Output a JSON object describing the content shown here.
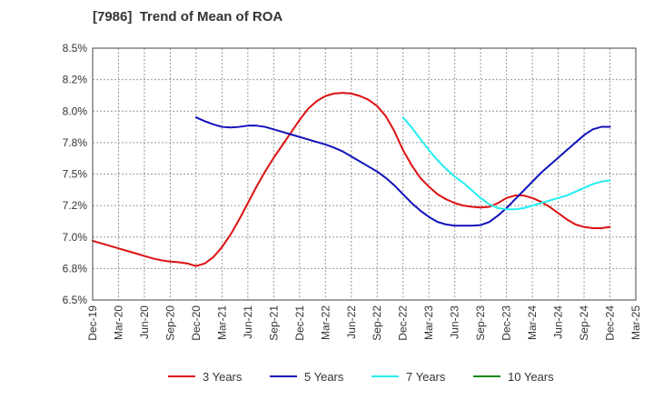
{
  "chart_data": {
    "type": "line",
    "title": "[7986]  Trend of Mean of ROA",
    "y_unit": "%",
    "ylim": [
      6.5,
      8.5
    ],
    "y_ticks": [
      "6.5%",
      "6.8%",
      "7.0%",
      "7.2%",
      "7.5%",
      "7.8%",
      "8.0%",
      "8.2%",
      "8.5%"
    ],
    "x_ticks": [
      "Dec-19",
      "Mar-20",
      "Jun-20",
      "Sep-20",
      "Dec-20",
      "Mar-21",
      "Jun-21",
      "Sep-21",
      "Dec-21",
      "Mar-22",
      "Jun-22",
      "Sep-22",
      "Dec-22",
      "Mar-23",
      "Jun-23",
      "Sep-23",
      "Dec-23",
      "Mar-24",
      "Jun-24",
      "Sep-24",
      "Dec-24",
      "Mar-25"
    ],
    "grid": true,
    "legend_position": "bottom",
    "series": [
      {
        "name": "3 Years",
        "color": "#dd1111",
        "points": [
          [
            "Dec-19",
            6.97
          ],
          [
            "Jan-20",
            6.95
          ],
          [
            "Feb-20",
            6.93
          ],
          [
            "Mar-20",
            6.91
          ],
          [
            "Apr-20",
            6.89
          ],
          [
            "May-20",
            6.87
          ],
          [
            "Jun-20",
            6.85
          ],
          [
            "Jul-20",
            6.83
          ],
          [
            "Aug-20",
            6.815
          ],
          [
            "Sep-20",
            6.805
          ],
          [
            "Oct-20",
            6.8
          ],
          [
            "Nov-20",
            6.79
          ],
          [
            "Dec-20",
            6.77
          ],
          [
            "Jan-21",
            6.79
          ],
          [
            "Feb-21",
            6.84
          ],
          [
            "Mar-21",
            6.92
          ],
          [
            "Apr-21",
            7.02
          ],
          [
            "May-21",
            7.14
          ],
          [
            "Jun-21",
            7.27
          ],
          [
            "Jul-21",
            7.4
          ],
          [
            "Aug-21",
            7.52
          ],
          [
            "Sep-21",
            7.63
          ],
          [
            "Oct-21",
            7.73
          ],
          [
            "Nov-21",
            7.83
          ],
          [
            "Dec-21",
            7.93
          ],
          [
            "Jan-22",
            8.02
          ],
          [
            "Feb-22",
            8.08
          ],
          [
            "Mar-22",
            8.12
          ],
          [
            "Apr-22",
            8.14
          ],
          [
            "May-22",
            8.145
          ],
          [
            "Jun-22",
            8.14
          ],
          [
            "Jul-22",
            8.12
          ],
          [
            "Aug-22",
            8.09
          ],
          [
            "Sep-22",
            8.04
          ],
          [
            "Oct-22",
            7.96
          ],
          [
            "Nov-22",
            7.84
          ],
          [
            "Dec-22",
            7.69
          ],
          [
            "Jan-23",
            7.57
          ],
          [
            "Feb-23",
            7.47
          ],
          [
            "Mar-23",
            7.4
          ],
          [
            "Apr-23",
            7.34
          ],
          [
            "May-23",
            7.3
          ],
          [
            "Jun-23",
            7.27
          ],
          [
            "Jul-23",
            7.25
          ],
          [
            "Aug-23",
            7.24
          ],
          [
            "Sep-23",
            7.235
          ],
          [
            "Oct-23",
            7.24
          ],
          [
            "Nov-23",
            7.27
          ],
          [
            "Dec-23",
            7.31
          ],
          [
            "Jan-24",
            7.33
          ],
          [
            "Feb-24",
            7.33
          ],
          [
            "Mar-24",
            7.31
          ],
          [
            "Apr-24",
            7.28
          ],
          [
            "May-24",
            7.24
          ],
          [
            "Jun-24",
            7.19
          ],
          [
            "Jul-24",
            7.14
          ],
          [
            "Aug-24",
            7.1
          ],
          [
            "Sep-24",
            7.08
          ],
          [
            "Oct-24",
            7.07
          ],
          [
            "Nov-24",
            7.07
          ],
          [
            "Dec-24",
            7.08
          ]
        ]
      },
      {
        "name": "5 Years",
        "color": "#1111bb",
        "points": [
          [
            "Dec-20",
            7.95
          ],
          [
            "Jan-21",
            7.92
          ],
          [
            "Feb-21",
            7.895
          ],
          [
            "Mar-21",
            7.875
          ],
          [
            "Apr-21",
            7.87
          ],
          [
            "May-21",
            7.875
          ],
          [
            "Jun-21",
            7.885
          ],
          [
            "Jul-21",
            7.885
          ],
          [
            "Aug-21",
            7.875
          ],
          [
            "Sep-21",
            7.855
          ],
          [
            "Oct-21",
            7.835
          ],
          [
            "Nov-21",
            7.815
          ],
          [
            "Dec-21",
            7.795
          ],
          [
            "Jan-22",
            7.775
          ],
          [
            "Feb-22",
            7.755
          ],
          [
            "Mar-22",
            7.735
          ],
          [
            "Apr-22",
            7.71
          ],
          [
            "May-22",
            7.68
          ],
          [
            "Jun-22",
            7.64
          ],
          [
            "Jul-22",
            7.6
          ],
          [
            "Aug-22",
            7.56
          ],
          [
            "Sep-22",
            7.52
          ],
          [
            "Oct-22",
            7.47
          ],
          [
            "Nov-22",
            7.41
          ],
          [
            "Dec-22",
            7.34
          ],
          [
            "Jan-23",
            7.27
          ],
          [
            "Feb-23",
            7.21
          ],
          [
            "Mar-23",
            7.16
          ],
          [
            "Apr-23",
            7.12
          ],
          [
            "May-23",
            7.1
          ],
          [
            "Jun-23",
            7.09
          ],
          [
            "Jul-23",
            7.09
          ],
          [
            "Aug-23",
            7.09
          ],
          [
            "Sep-23",
            7.095
          ],
          [
            "Oct-23",
            7.12
          ],
          [
            "Nov-23",
            7.17
          ],
          [
            "Dec-23",
            7.23
          ],
          [
            "Jan-24",
            7.3
          ],
          [
            "Feb-24",
            7.37
          ],
          [
            "Mar-24",
            7.44
          ],
          [
            "Apr-24",
            7.51
          ],
          [
            "May-24",
            7.57
          ],
          [
            "Jun-24",
            7.63
          ],
          [
            "Jul-24",
            7.69
          ],
          [
            "Aug-24",
            7.75
          ],
          [
            "Sep-24",
            7.81
          ],
          [
            "Oct-24",
            7.855
          ],
          [
            "Nov-24",
            7.875
          ],
          [
            "Dec-24",
            7.875
          ]
        ]
      },
      {
        "name": "7 Years",
        "color": "#22eeee",
        "points": [
          [
            "Dec-22",
            7.95
          ],
          [
            "Jan-23",
            7.87
          ],
          [
            "Feb-23",
            7.78
          ],
          [
            "Mar-23",
            7.69
          ],
          [
            "Apr-23",
            7.61
          ],
          [
            "May-23",
            7.54
          ],
          [
            "Jun-23",
            7.48
          ],
          [
            "Jul-23",
            7.43
          ],
          [
            "Aug-23",
            7.37
          ],
          [
            "Sep-23",
            7.31
          ],
          [
            "Oct-23",
            7.26
          ],
          [
            "Nov-23",
            7.23
          ],
          [
            "Dec-23",
            7.22
          ],
          [
            "Jan-24",
            7.22
          ],
          [
            "Feb-24",
            7.23
          ],
          [
            "Mar-24",
            7.25
          ],
          [
            "Apr-24",
            7.27
          ],
          [
            "May-24",
            7.29
          ],
          [
            "Jun-24",
            7.31
          ],
          [
            "Jul-24",
            7.33
          ],
          [
            "Aug-24",
            7.36
          ],
          [
            "Sep-24",
            7.39
          ],
          [
            "Oct-24",
            7.42
          ],
          [
            "Nov-24",
            7.44
          ],
          [
            "Dec-24",
            7.45
          ]
        ]
      },
      {
        "name": "10 Years",
        "color": "#118811",
        "points": []
      }
    ]
  }
}
